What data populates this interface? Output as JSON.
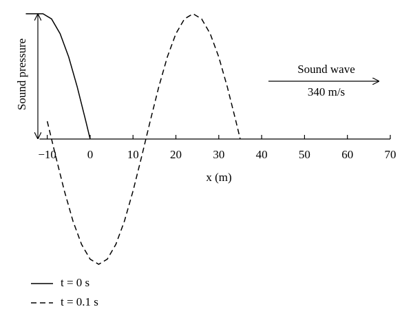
{
  "chart_data": {
    "type": "line",
    "xlabel": "x (m)",
    "ylabel": "Sound pressure",
    "annotations": [
      "Sound wave",
      "340 m/s"
    ],
    "xlim": [
      -15,
      70
    ],
    "ylim": [
      -1,
      1
    ],
    "xticks": [
      {
        "value": -10,
        "label": "−10"
      },
      0,
      10,
      20,
      30,
      40,
      50,
      60,
      70
    ],
    "series": [
      {
        "name": "t = 0 s",
        "color": "#000000",
        "linestyle": "solid",
        "x": [
          -15,
          -11,
          -9,
          -7,
          -5,
          -3,
          -1,
          0
        ],
        "values": [
          1,
          1,
          0.959,
          0.841,
          0.655,
          0.415,
          0.142,
          0
        ]
      },
      {
        "name": "t = 0.1 s",
        "color": "#000000",
        "linestyle": "dashed",
        "x": [
          -10,
          -8,
          -6,
          -4,
          -2,
          0,
          2,
          4,
          6,
          8,
          10,
          12,
          14,
          16,
          18,
          20,
          22,
          24,
          26,
          28,
          30,
          32,
          34,
          35
        ],
        "values": [
          0.142,
          -0.142,
          -0.415,
          -0.655,
          -0.841,
          -0.959,
          -1,
          -0.959,
          -0.841,
          -0.655,
          -0.415,
          -0.142,
          0.142,
          0.415,
          0.655,
          0.841,
          0.959,
          1,
          0.959,
          0.841,
          0.655,
          0.415,
          0.142,
          0
        ]
      }
    ]
  }
}
